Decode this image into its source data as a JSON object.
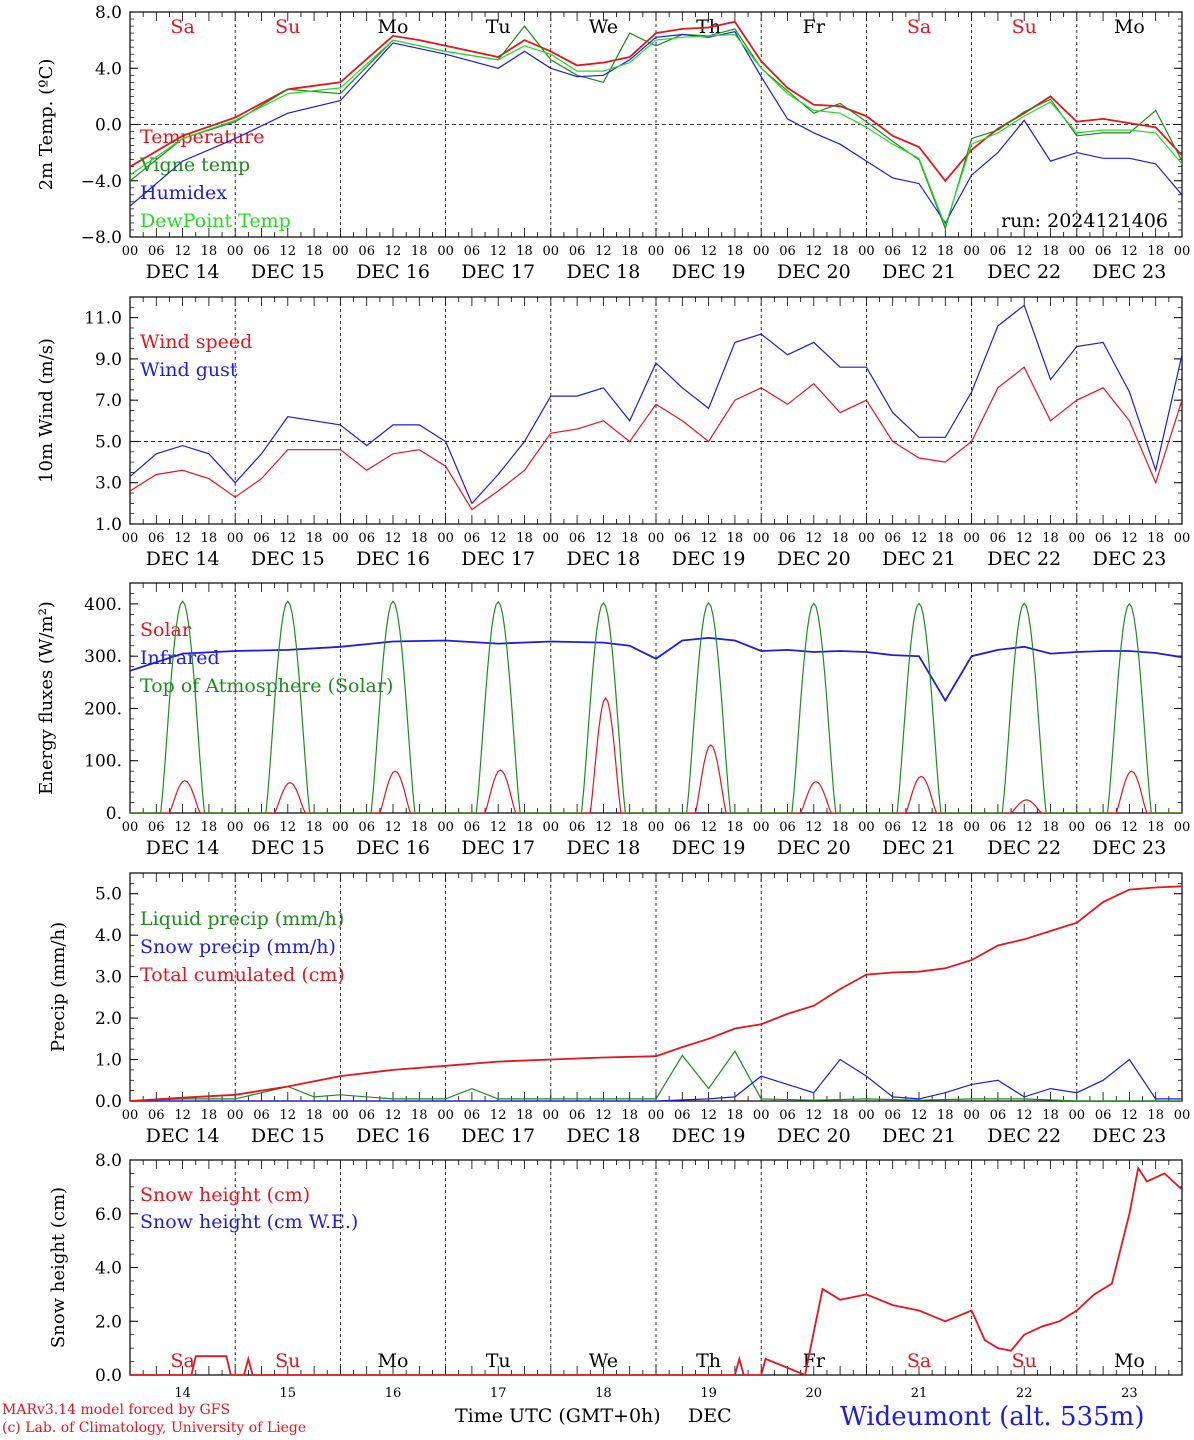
{
  "days": [
    "DEC 14",
    "DEC 15",
    "DEC 16",
    "DEC 17",
    "DEC 18",
    "DEC 19",
    "DEC 20",
    "DEC 21",
    "DEC 22",
    "DEC 23"
  ],
  "hour_ticks": [
    "00",
    "06",
    "12",
    "18",
    "00",
    "06",
    "12",
    "18",
    "00",
    "06",
    "12",
    "18",
    "00",
    "06",
    "12",
    "18",
    "00",
    "06",
    "12",
    "18",
    "00",
    "06",
    "12",
    "18",
    "00",
    "06",
    "12",
    "18",
    "00",
    "06",
    "12",
    "18",
    "00",
    "06",
    "12",
    "18",
    "00",
    "06",
    "12",
    "18",
    "00"
  ],
  "weekday_labels": [
    {
      "t": "Sa",
      "color": "#e8141d"
    },
    {
      "t": "Su",
      "color": "#e8141d"
    },
    {
      "t": "Mo",
      "color": "#000000"
    },
    {
      "t": "Tu",
      "color": "#000000"
    },
    {
      "t": "We",
      "color": "#000000"
    },
    {
      "t": "Th",
      "color": "#000000"
    },
    {
      "t": "Fr",
      "color": "#000000"
    },
    {
      "t": "Sa",
      "color": "#e8141d"
    },
    {
      "t": "Su",
      "color": "#e8141d"
    },
    {
      "t": "Mo",
      "color": "#000000"
    }
  ],
  "run_label": "run: 2024121406",
  "bottom_day_numbers": [
    "14",
    "15",
    "16",
    "17",
    "18",
    "19",
    "20",
    "21",
    "22",
    "23"
  ],
  "footer": {
    "credit1": "MARv3.14 model forced by GFS",
    "credit2": "(c) Lab. of Climatology, University of Liege",
    "axis_title": "Time UTC (GMT+0h)",
    "month": "DEC",
    "station": "Wideumont (alt. 535m)"
  },
  "chart_data": [
    {
      "type": "line",
      "ylabel": "2m Temp. (ºC)",
      "ylim": [
        -8,
        8
      ],
      "yticks": [
        "8.0",
        "4.0",
        "0.0",
        "−4.0",
        "−8.0"
      ],
      "ytick_values": [
        8,
        4,
        0,
        -4,
        -8
      ],
      "reference_line": 0,
      "x_unit": "hours since DEC 14 00 UTC",
      "xlim": [
        0,
        240
      ],
      "series": [
        {
          "name": "Temperature",
          "color": "#e8141d",
          "x": [
            0,
            12,
            24,
            36,
            48,
            60,
            66,
            72,
            84,
            90,
            96,
            102,
            108,
            114,
            120,
            126,
            132,
            138,
            144,
            150,
            156,
            162,
            168,
            174,
            180,
            186,
            192,
            198,
            204,
            210,
            216,
            222,
            228,
            234,
            240
          ],
          "y": [
            -3.0,
            -0.8,
            0.5,
            2.5,
            3.0,
            6.3,
            6.0,
            5.6,
            4.8,
            6.0,
            5.2,
            4.2,
            4.4,
            4.8,
            6.5,
            6.8,
            6.9,
            7.3,
            4.5,
            2.6,
            1.4,
            1.3,
            0.6,
            -0.8,
            -1.6,
            -4.0,
            -1.8,
            -0.3,
            0.8,
            2.0,
            0.2,
            0.4,
            0.1,
            -0.2,
            -2.2
          ]
        },
        {
          "name": "Vigne temp",
          "color": "#1e8c1e",
          "x": [
            0,
            12,
            24,
            36,
            48,
            60,
            66,
            72,
            84,
            90,
            96,
            102,
            108,
            114,
            120,
            126,
            132,
            138,
            144,
            150,
            156,
            162,
            168,
            174,
            180,
            186,
            192,
            198,
            204,
            210,
            216,
            222,
            228,
            234,
            240
          ],
          "y": [
            -4.0,
            -1.0,
            0.2,
            2.5,
            2.2,
            6.0,
            5.6,
            5.2,
            4.6,
            7.0,
            4.6,
            3.5,
            3.0,
            6.5,
            5.6,
            6.4,
            6.3,
            6.8,
            4.0,
            2.4,
            0.8,
            1.5,
            0.2,
            -1.2,
            -2.5,
            -7.4,
            -1.0,
            -0.4,
            0.9,
            1.8,
            -0.8,
            -0.6,
            -0.6,
            1.0,
            -2.6
          ]
        },
        {
          "name": "Humidex",
          "color": "#1c1ce6",
          "x": [
            0,
            12,
            24,
            36,
            48,
            60,
            66,
            72,
            84,
            90,
            96,
            102,
            108,
            114,
            120,
            126,
            132,
            138,
            144,
            150,
            156,
            162,
            168,
            174,
            180,
            186,
            192,
            198,
            204,
            210,
            216,
            222,
            228,
            234,
            240
          ],
          "y": [
            -5.8,
            -2.6,
            -1.0,
            0.8,
            1.7,
            5.8,
            5.4,
            5.0,
            4.0,
            5.2,
            4.0,
            3.4,
            3.5,
            4.6,
            6.2,
            6.4,
            6.2,
            6.6,
            3.4,
            0.4,
            -0.6,
            -1.4,
            -2.6,
            -3.8,
            -4.2,
            -7.0,
            -3.6,
            -2.0,
            0.3,
            -2.6,
            -2.0,
            -2.4,
            -2.4,
            -2.8,
            -5.0
          ]
        },
        {
          "name": "DewPoint Temp",
          "color": "#22dd22",
          "x": [
            0,
            12,
            24,
            36,
            48,
            60,
            66,
            72,
            84,
            90,
            96,
            102,
            108,
            114,
            120,
            126,
            132,
            138,
            144,
            150,
            156,
            162,
            168,
            174,
            180,
            186,
            192,
            198,
            204,
            210,
            216,
            222,
            228,
            234,
            240
          ],
          "y": [
            -3.6,
            -1.0,
            0.3,
            2.2,
            2.6,
            6.0,
            5.6,
            5.2,
            4.6,
            5.6,
            5.0,
            3.8,
            3.8,
            4.4,
            6.0,
            6.2,
            6.3,
            6.4,
            4.0,
            2.2,
            1.0,
            0.8,
            -0.2,
            -1.4,
            -2.4,
            -7.2,
            -1.4,
            -0.6,
            0.6,
            1.6,
            -0.6,
            -0.4,
            -0.4,
            -0.6,
            -2.8
          ]
        }
      ]
    },
    {
      "type": "line",
      "ylabel": "10m Wind (m/s)",
      "ylim": [
        1,
        12
      ],
      "yticks": [
        "11.0",
        "9.0",
        "7.0",
        "5.0",
        "3.0",
        "1.0"
      ],
      "ytick_values": [
        11,
        9,
        7,
        5,
        3,
        1
      ],
      "reference_line": 5,
      "x_unit": "hours since DEC 14 00 UTC",
      "xlim": [
        0,
        240
      ],
      "series": [
        {
          "name": "Wind speed",
          "color": "#e8141d",
          "x": [
            0,
            6,
            12,
            18,
            24,
            30,
            36,
            42,
            48,
            54,
            60,
            66,
            72,
            78,
            84,
            90,
            96,
            102,
            108,
            114,
            120,
            126,
            132,
            138,
            144,
            150,
            156,
            162,
            168,
            174,
            180,
            186,
            192,
            198,
            204,
            210,
            216,
            222,
            228,
            234,
            240
          ],
          "y": [
            2.6,
            3.4,
            3.6,
            3.2,
            2.3,
            3.2,
            4.6,
            4.6,
            4.6,
            3.6,
            4.4,
            4.6,
            3.8,
            1.7,
            2.6,
            3.6,
            5.4,
            5.6,
            6.0,
            5.0,
            6.8,
            6.0,
            5.0,
            7.0,
            7.6,
            6.8,
            7.8,
            6.4,
            7.0,
            5.0,
            4.2,
            4.0,
            5.0,
            7.6,
            8.6,
            6.0,
            7.0,
            7.6,
            6.0,
            3.0,
            7.0
          ]
        },
        {
          "name": "Wind gust",
          "color": "#1c1ce6",
          "x": [
            0,
            6,
            12,
            18,
            24,
            30,
            36,
            42,
            48,
            54,
            60,
            66,
            72,
            78,
            84,
            90,
            96,
            102,
            108,
            114,
            120,
            126,
            132,
            138,
            144,
            150,
            156,
            162,
            168,
            174,
            180,
            186,
            192,
            198,
            204,
            210,
            216,
            222,
            228,
            234,
            240
          ],
          "y": [
            3.3,
            4.4,
            4.8,
            4.4,
            3.0,
            4.4,
            6.2,
            6.0,
            5.8,
            4.8,
            5.8,
            5.8,
            5.0,
            2.0,
            3.4,
            5.0,
            7.2,
            7.2,
            7.6,
            6.0,
            8.8,
            7.6,
            6.6,
            9.8,
            10.2,
            9.2,
            9.8,
            8.6,
            8.6,
            6.4,
            5.2,
            5.2,
            7.4,
            10.6,
            11.6,
            8.0,
            9.6,
            9.8,
            7.4,
            3.6,
            9.2
          ]
        }
      ]
    },
    {
      "type": "line",
      "ylabel": "Energy fluxes (W/m²)",
      "ylim": [
        0,
        440
      ],
      "yticks": [
        "400.",
        "300.",
        "200.",
        "100.",
        "0."
      ],
      "ytick_values": [
        400,
        300,
        200,
        100,
        0
      ],
      "x_unit": "hours since DEC 14 00 UTC",
      "xlim": [
        0,
        240
      ],
      "series": [
        {
          "name": "Solar",
          "color": "#e8141d",
          "daily_peak": [
            62,
            58,
            80,
            82,
            220,
            130,
            60,
            70,
            25,
            80
          ]
        },
        {
          "name": "Infrared",
          "color": "#1c1ce6",
          "x": [
            0,
            12,
            24,
            36,
            48,
            60,
            72,
            84,
            96,
            108,
            114,
            120,
            126,
            132,
            138,
            144,
            150,
            156,
            162,
            168,
            174,
            180,
            186,
            192,
            198,
            204,
            210,
            216,
            222,
            228,
            234,
            240
          ],
          "y": [
            272,
            305,
            310,
            312,
            318,
            328,
            330,
            324,
            328,
            326,
            320,
            295,
            330,
            335,
            330,
            310,
            312,
            308,
            310,
            308,
            302,
            300,
            215,
            300,
            312,
            318,
            305,
            308,
            310,
            310,
            306,
            298
          ]
        },
        {
          "name": "Top of Atmosphere (Solar)",
          "color": "#1e8c1e",
          "daily_peak": [
            405,
            405,
            405,
            404,
            402,
            402,
            401,
            401,
            401,
            400
          ]
        }
      ]
    },
    {
      "type": "line",
      "ylabel": "Precip (mm/h)",
      "ylim": [
        0,
        5.5
      ],
      "yticks": [
        "5.0",
        "4.0",
        "3.0",
        "2.0",
        "1.0",
        "0.0"
      ],
      "ytick_values": [
        5,
        4,
        3,
        2,
        1,
        0
      ],
      "x_unit": "hours since DEC 14 00 UTC",
      "xlim": [
        0,
        240
      ],
      "series": [
        {
          "name": "Liquid precip (mm/h)",
          "color": "#1e8c1e",
          "x": [
            0,
            12,
            24,
            36,
            42,
            48,
            60,
            72,
            78,
            84,
            96,
            108,
            120,
            126,
            132,
            138,
            144,
            156,
            168,
            180,
            192,
            204,
            216,
            228,
            240
          ],
          "y": [
            0,
            0.05,
            0.05,
            0.35,
            0.1,
            0.15,
            0.05,
            0.05,
            0.3,
            0.05,
            0.05,
            0.05,
            0.05,
            1.1,
            0.3,
            1.2,
            0.05,
            0.02,
            0.05,
            0.02,
            0.05,
            0.05,
            0,
            0,
            0
          ]
        },
        {
          "name": "Snow precip (mm/h)",
          "color": "#1c1ce6",
          "x": [
            0,
            120,
            132,
            138,
            144,
            150,
            156,
            162,
            168,
            174,
            180,
            186,
            192,
            198,
            204,
            210,
            216,
            222,
            228,
            234,
            240
          ],
          "y": [
            0,
            0,
            0.05,
            0.1,
            0.6,
            0.4,
            0.2,
            1.0,
            0.6,
            0.1,
            0.05,
            0.2,
            0.4,
            0.5,
            0.1,
            0.3,
            0.2,
            0.5,
            1.0,
            0.05,
            0.05
          ]
        },
        {
          "name": "Total cumulated (cm)",
          "color": "#e8141d",
          "x": [
            0,
            12,
            24,
            36,
            48,
            60,
            72,
            84,
            96,
            108,
            120,
            126,
            132,
            138,
            144,
            150,
            156,
            162,
            168,
            174,
            180,
            186,
            192,
            198,
            204,
            210,
            216,
            222,
            228,
            234,
            240
          ],
          "y": [
            0,
            0.08,
            0.15,
            0.35,
            0.6,
            0.75,
            0.85,
            0.95,
            1.0,
            1.05,
            1.08,
            1.3,
            1.5,
            1.75,
            1.85,
            2.1,
            2.3,
            2.7,
            3.05,
            3.1,
            3.12,
            3.2,
            3.4,
            3.75,
            3.9,
            4.1,
            4.3,
            4.8,
            5.1,
            5.15,
            5.18
          ]
        }
      ]
    },
    {
      "type": "line",
      "ylabel": "Snow height (cm)",
      "ylim": [
        0,
        8
      ],
      "yticks": [
        "8.0",
        "6.0",
        "4.0",
        "2.0",
        "0.0"
      ],
      "ytick_values": [
        8,
        6,
        4,
        2,
        0
      ],
      "x_unit": "hours since DEC 14 00 UTC",
      "xlim": [
        0,
        240
      ],
      "series": [
        {
          "name": "Snow height (cm)",
          "color": "#e8141d",
          "x": [
            0,
            14,
            15,
            22,
            23,
            26,
            27,
            28,
            138,
            139,
            140,
            144,
            145,
            154,
            158,
            162,
            168,
            174,
            180,
            186,
            192,
            195,
            198,
            201,
            204,
            208,
            212,
            216,
            220,
            224,
            228,
            230,
            232,
            236,
            240
          ],
          "y": [
            0,
            0,
            0.7,
            0.7,
            0,
            0,
            0.6,
            0,
            0,
            0.6,
            0,
            0,
            0.6,
            0,
            3.2,
            2.8,
            3.0,
            2.6,
            2.4,
            2.0,
            2.4,
            1.3,
            1.0,
            0.9,
            1.5,
            1.8,
            2.0,
            2.4,
            3.0,
            3.4,
            6.0,
            7.7,
            7.2,
            7.5,
            6.9
          ]
        },
        {
          "name": "Snow height (cm W.E.)",
          "color": "#1c1ce6",
          "x": [],
          "y": []
        }
      ]
    }
  ]
}
